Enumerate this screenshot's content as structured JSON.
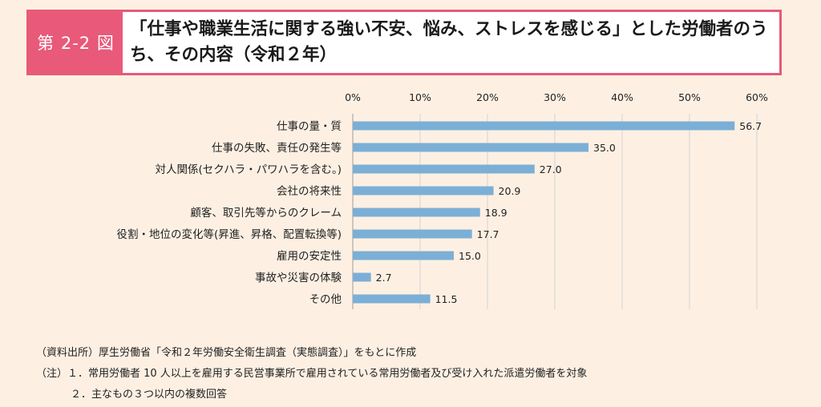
{
  "figure": {
    "label": "第 2-2 図",
    "title": "「仕事や職業生活に関する強い不安、悩み、ストレスを感じる」とした労働者のうち、その内容（令和２年）"
  },
  "chart_data": {
    "type": "bar",
    "orientation": "horizontal",
    "categories": [
      "仕事の量・質",
      "仕事の失敗、責任の発生等",
      "対人関係(セクハラ・パワハラを含む。)",
      "会社の将来性",
      "顧客、取引先等からのクレーム",
      "役割・地位の変化等(昇進、昇格、配置転換等)",
      "雇用の安定性",
      "事故や災害の体験",
      "その他"
    ],
    "values": [
      56.7,
      35.0,
      27.0,
      20.9,
      18.9,
      17.7,
      15.0,
      2.7,
      11.5
    ],
    "value_labels": [
      "56.7",
      "35.0",
      "27.0",
      "20.9",
      "18.9",
      "17.7",
      "15.0",
      "2.7",
      "11.5"
    ],
    "xlim": [
      0,
      60
    ],
    "xticks": [
      "0%",
      "10%",
      "20%",
      "30%",
      "40%",
      "50%",
      "60%"
    ],
    "grid": true,
    "bar_color": "#7cafd6"
  },
  "notes": {
    "source": "（資料出所）厚生労働省「令和２年労働安全衛生調査（実態調査）」をもとに作成",
    "note1": "（注）１．常用労働者 10 人以上を雇用する民営事業所で雇用されている常用労働者及び受け入れた派遣労働者を対象",
    "note2": "２．主なもの３つ以内の複数回答"
  }
}
